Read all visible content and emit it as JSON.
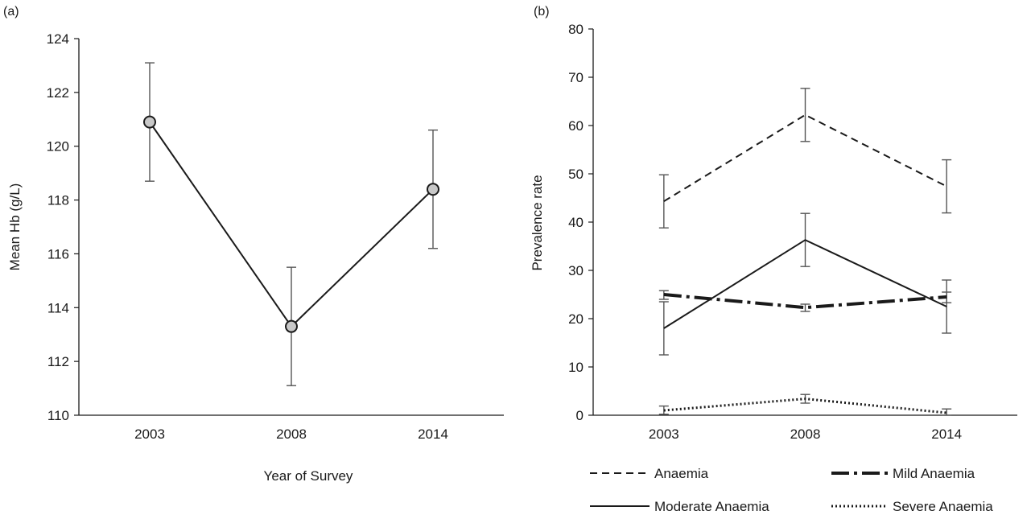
{
  "chart_data": [
    {
      "panel_label": "(a)",
      "type": "line",
      "xlabel": "Year of Survey",
      "ylabel": "Mean Hb (g/L)",
      "categories": [
        "2003",
        "2008",
        "2014"
      ],
      "ylim": [
        110,
        124
      ],
      "yticks": [
        110,
        112,
        114,
        116,
        118,
        120,
        122,
        124
      ],
      "grid": false,
      "series": [
        {
          "values": [
            120.9,
            113.3,
            118.4
          ],
          "error_low": [
            118.7,
            111.1,
            116.2
          ],
          "error_high": [
            123.1,
            115.5,
            120.6
          ],
          "line_style": "solid",
          "marker": "circle",
          "marker_fill": "#c8c8c8",
          "line_color": "#1a1a1a"
        }
      ]
    },
    {
      "panel_label": "(b)",
      "type": "line",
      "xlabel": "",
      "ylabel": "Prevalence rate",
      "categories": [
        "2003",
        "2008",
        "2014"
      ],
      "ylim": [
        0,
        80
      ],
      "yticks": [
        0,
        10,
        20,
        30,
        40,
        50,
        60,
        70,
        80
      ],
      "grid": false,
      "legend_position": "bottom",
      "series": [
        {
          "name": "Anaemia",
          "values": [
            44.3,
            62.2,
            47.4
          ],
          "error_low": [
            38.8,
            56.7,
            41.9
          ],
          "error_high": [
            49.8,
            67.7,
            52.9
          ],
          "line_style": "dashed"
        },
        {
          "name": "Mild Anaemia",
          "values": [
            25.0,
            22.3,
            24.5
          ],
          "error_low": [
            24.0,
            21.5,
            23.3
          ],
          "error_high": [
            25.8,
            23.0,
            25.5
          ],
          "line_style": "dashdot"
        },
        {
          "name": "Moderate Anaemia",
          "values": [
            18.0,
            36.3,
            22.5
          ],
          "error_low": [
            12.5,
            30.8,
            17.0
          ],
          "error_high": [
            23.5,
            41.8,
            28.0
          ],
          "line_style": "solid"
        },
        {
          "name": "Severe Anaemia",
          "values": [
            1.0,
            3.4,
            0.5
          ],
          "error_low": [
            0.2,
            2.5,
            0.0
          ],
          "error_high": [
            1.9,
            4.3,
            1.3
          ],
          "line_style": "dotted"
        }
      ]
    }
  ]
}
